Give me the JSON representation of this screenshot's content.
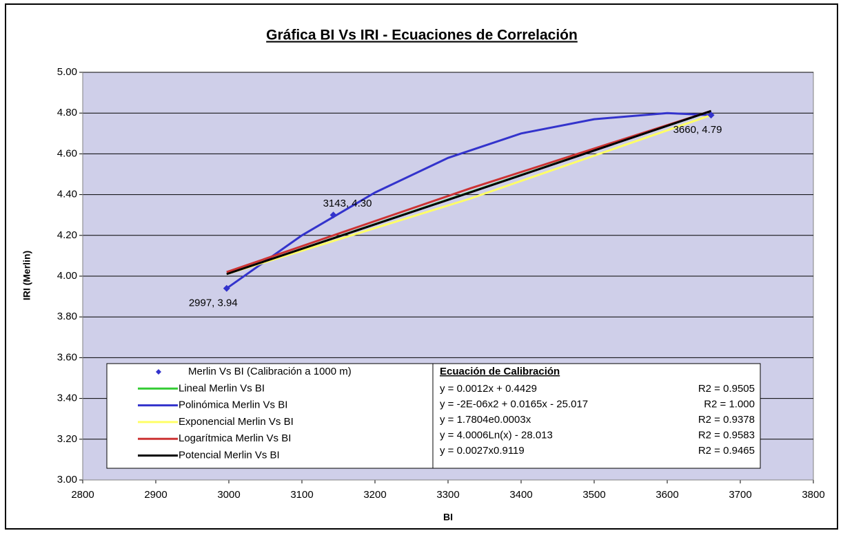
{
  "chart_data": {
    "type": "scatter",
    "title": "Gráfica BI Vs IRI - Ecuaciones de Correlación",
    "x_label": "BI",
    "y_label": "IRI (Merlin)",
    "xlim": [
      2800,
      3800
    ],
    "xticks": [
      2800,
      2900,
      3000,
      3100,
      3200,
      3300,
      3400,
      3500,
      3600,
      3700,
      3800
    ],
    "ylim": [
      3,
      5
    ],
    "yticks": [
      {
        "value": 3,
        "label": "3.00"
      },
      {
        "value": 3.2,
        "label": "3.20"
      },
      {
        "value": 3.4,
        "label": "3.40"
      },
      {
        "value": 3.6,
        "label": "3.60"
      },
      {
        "value": 3.8,
        "label": "3.80"
      },
      {
        "value": 4,
        "label": "4.00"
      },
      {
        "value": 4.2,
        "label": "4.20"
      },
      {
        "value": 4.4,
        "label": "4.40"
      },
      {
        "value": 4.6,
        "label": "4.60"
      },
      {
        "value": 4.8,
        "label": "4.80"
      },
      {
        "value": 5,
        "label": "5.00"
      }
    ],
    "grid": true,
    "series": [
      {
        "name": "Merlin Vs BI (Calibración a 1000 m)",
        "kind": "points",
        "color": "#3333cc",
        "x": [
          2997,
          3143,
          3660
        ],
        "values": [
          3.94,
          4.3,
          4.79
        ],
        "value_labels": [
          "2997, 3.94",
          "3143, 4.30",
          "3660, 4.79"
        ]
      },
      {
        "name": "Lineal Merlin Vs BI",
        "kind": "line",
        "color": "#33cc33",
        "x": [
          2997,
          3660
        ],
        "values": [
          4.01,
          4.81
        ]
      },
      {
        "name": "Polinómica Merlin Vs BI",
        "kind": "line",
        "color": "#3333cc",
        "x": [
          2997,
          3100,
          3200,
          3300,
          3400,
          3500,
          3600,
          3660
        ],
        "values": [
          3.94,
          4.2,
          4.41,
          4.58,
          4.7,
          4.77,
          4.8,
          4.79
        ]
      },
      {
        "name": "Exponencial Merlin Vs BI",
        "kind": "line",
        "color": "#ffff66",
        "x": [
          2997,
          3330,
          3660
        ],
        "values": [
          4.01,
          4.38,
          4.79
        ]
      },
      {
        "name": "Logarítmica Merlin Vs BI",
        "kind": "line",
        "color": "#cc3333",
        "x": [
          2997,
          3330,
          3660
        ],
        "values": [
          4.02,
          4.43,
          4.81
        ]
      },
      {
        "name": "Potencial Merlin Vs BI",
        "kind": "line",
        "color": "#000000",
        "x": [
          2997,
          3330,
          3660
        ],
        "values": [
          4.01,
          4.41,
          4.81
        ]
      }
    ],
    "equation_box": {
      "title": "Ecuación de Calibración",
      "rows": [
        {
          "equation": "y = 0.0012x + 0.4429",
          "r2": "R2 = 0.9505"
        },
        {
          "equation": "y = -2E-06x2 + 0.0165x - 25.017",
          "r2": "R2 = 1.000"
        },
        {
          "equation": "y = 1.7804e0.0003x",
          "r2": "R2 = 0.9378"
        },
        {
          "equation": "y = 4.0006Ln(x) - 28.013",
          "r2": "R2 = 0.9583"
        },
        {
          "equation": "y = 0.0027x0.9119",
          "r2": "R2 = 0.9465"
        }
      ]
    }
  }
}
